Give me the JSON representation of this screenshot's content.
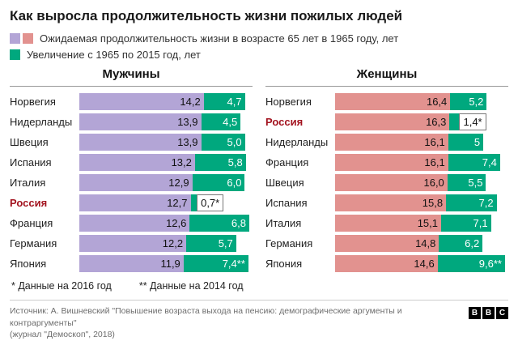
{
  "chart_data": {
    "type": "bar",
    "title": "Как выросла продолжительность жизни пожилых людей",
    "unit": "лет",
    "inc_color": "#00a87e",
    "highlight_color": "#a3131f",
    "legend": [
      {
        "label": "Ожидаемая продолжительность жизни в возрасте 65 лет в 1965 году, лет",
        "swatches": [
          "#b3a5d6",
          "#e2928f"
        ]
      },
      {
        "label": "Увеличение с 1965 по 2015 год, лет",
        "swatches": [
          "#00a87e"
        ]
      }
    ],
    "groups": [
      {
        "title": "Мужчины",
        "base_color": "#b3a5d6",
        "rows": [
          {
            "country": "Норвегия",
            "base": 14.2,
            "base_label": "14,2",
            "inc": 4.7,
            "inc_label": "4,7",
            "highlight": false
          },
          {
            "country": "Нидерланды",
            "base": 13.9,
            "base_label": "13,9",
            "inc": 4.5,
            "inc_label": "4,5",
            "highlight": false
          },
          {
            "country": "Швеция",
            "base": 13.9,
            "base_label": "13,9",
            "inc": 5.0,
            "inc_label": "5,0",
            "highlight": false
          },
          {
            "country": "Испания",
            "base": 13.2,
            "base_label": "13,2",
            "inc": 5.8,
            "inc_label": "5,8",
            "highlight": false
          },
          {
            "country": "Италия",
            "base": 12.9,
            "base_label": "12,9",
            "inc": 6.0,
            "inc_label": "6,0",
            "highlight": false
          },
          {
            "country": "Россия",
            "base": 12.7,
            "base_label": "12,7",
            "inc": 0.7,
            "inc_label": "0,7*",
            "highlight": true
          },
          {
            "country": "Франция",
            "base": 12.6,
            "base_label": "12,6",
            "inc": 6.8,
            "inc_label": "6,8",
            "highlight": false
          },
          {
            "country": "Германия",
            "base": 12.2,
            "base_label": "12,2",
            "inc": 5.7,
            "inc_label": "5,7",
            "highlight": false
          },
          {
            "country": "Япония",
            "base": 11.9,
            "base_label": "11,9",
            "inc": 7.4,
            "inc_label": "7,4**",
            "highlight": false
          }
        ]
      },
      {
        "title": "Женщины",
        "base_color": "#e2928f",
        "rows": [
          {
            "country": "Норвегия",
            "base": 16.4,
            "base_label": "16,4",
            "inc": 5.2,
            "inc_label": "5,2",
            "highlight": false
          },
          {
            "country": "Россия",
            "base": 16.3,
            "base_label": "16,3",
            "inc": 1.4,
            "inc_label": "1,4*",
            "highlight": true
          },
          {
            "country": "Нидерланды",
            "base": 16.1,
            "base_label": "16,1",
            "inc": 5.0,
            "inc_label": "5",
            "highlight": false
          },
          {
            "country": "Франция",
            "base": 16.1,
            "base_label": "16,1",
            "inc": 7.4,
            "inc_label": "7,4",
            "highlight": false
          },
          {
            "country": "Швеция",
            "base": 16.0,
            "base_label": "16,0",
            "inc": 5.5,
            "inc_label": "5,5",
            "highlight": false
          },
          {
            "country": "Испания",
            "base": 15.8,
            "base_label": "15,8",
            "inc": 7.2,
            "inc_label": "7,2",
            "highlight": false
          },
          {
            "country": "Италия",
            "base": 15.1,
            "base_label": "15,1",
            "inc": 7.1,
            "inc_label": "7,1",
            "highlight": false
          },
          {
            "country": "Германия",
            "base": 14.8,
            "base_label": "14,8",
            "inc": 6.2,
            "inc_label": "6,2",
            "highlight": false
          },
          {
            "country": "Япония",
            "base": 14.6,
            "base_label": "14,6",
            "inc": 9.6,
            "inc_label": "9,6**",
            "highlight": false
          }
        ]
      }
    ]
  },
  "footnotes": [
    "*  Данные на 2016 год",
    "** Данные на 2014 год"
  ],
  "source": "Источник: А. Вишневский \"Повышение возраста выхода на пенсию: демографические аргументы и контраргументы\"\n(журнал \"Демоскоп\", 2018)",
  "logo": [
    "B",
    "B",
    "C"
  ]
}
